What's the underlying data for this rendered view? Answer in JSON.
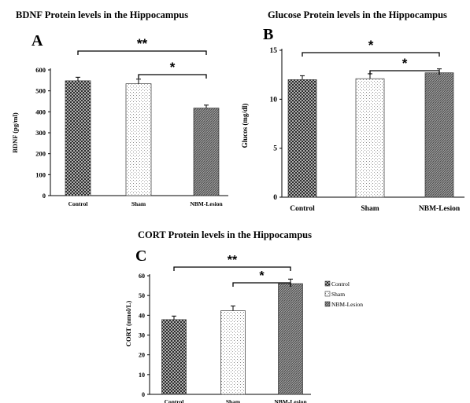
{
  "chart_data": [
    {
      "panel": "A",
      "type": "bar",
      "title": "BDNF  Protein levels in the Hippocampus",
      "ylabel": "BDNF (pg/ml)",
      "categories": [
        "Control",
        "Sham",
        "NBM-Lesion"
      ],
      "values": [
        548,
        534,
        418
      ],
      "errors": [
        17,
        22,
        14
      ],
      "ylim": [
        0,
        600
      ],
      "yticks": [
        "0",
        "100",
        "200",
        "300",
        "400",
        "500",
        "600"
      ],
      "significance": [
        {
          "label": "**",
          "from": 0,
          "to": 2
        },
        {
          "label": "*",
          "from": 1,
          "to": 2
        }
      ]
    },
    {
      "panel": "B",
      "type": "bar",
      "title": "Glucose  Protein levels in the Hippocampus",
      "ylabel": "Glucos  (mg/dl)",
      "categories": [
        "Control",
        "Sham",
        "NBM-Lesion"
      ],
      "values": [
        12.0,
        12.1,
        12.7
      ],
      "errors": [
        0.4,
        0.5,
        0.4
      ],
      "ylim": [
        0,
        15
      ],
      "yticks": [
        "0",
        "5",
        "10",
        "15"
      ],
      "significance": [
        {
          "label": "*",
          "from": 0,
          "to": 2
        },
        {
          "label": "*",
          "from": 1,
          "to": 2
        }
      ]
    },
    {
      "panel": "C",
      "type": "bar",
      "title": "CORT  Protein levels in the Hippocampus",
      "ylabel": "CORT (nmol/L)",
      "categories": [
        "Control",
        "Sham",
        "NBM-Lesion"
      ],
      "values": [
        37.8,
        42.3,
        56.0
      ],
      "errors": [
        1.8,
        2.4,
        2.3
      ],
      "ylim": [
        0,
        60
      ],
      "yticks": [
        "0",
        "10",
        "20",
        "30",
        "40",
        "50",
        "60"
      ],
      "legend": [
        "Control",
        "Sham",
        "NBM-Lesion"
      ],
      "significance": [
        {
          "label": "**",
          "from": 0,
          "to": 2
        },
        {
          "label": "*",
          "from": 1,
          "to": 2
        }
      ]
    }
  ]
}
